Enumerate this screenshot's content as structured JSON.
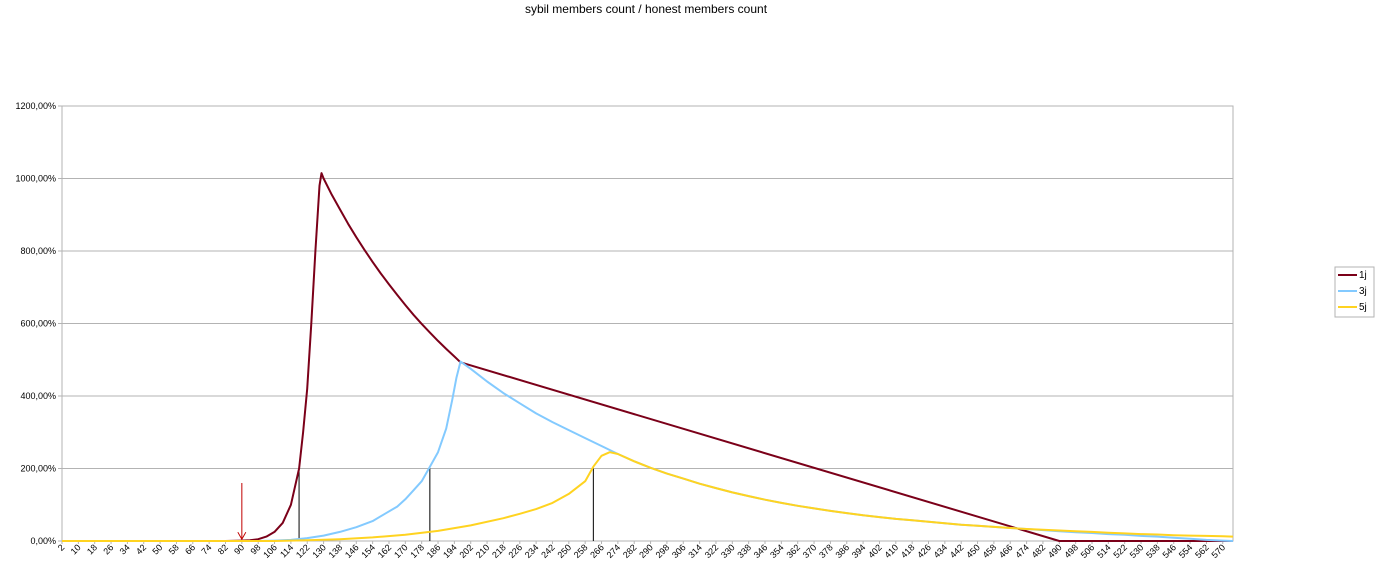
{
  "chart_data": {
    "type": "line",
    "title": "sybil members count / honest members count",
    "xlabel": "",
    "ylabel": "",
    "x_range": [
      2,
      575
    ],
    "x_tick_start": 2,
    "x_tick_step": 8,
    "x_tick_labels": [
      "2",
      "10",
      "18",
      "26",
      "34",
      "42",
      "50",
      "58",
      "66",
      "74",
      "82",
      "90",
      "98",
      "106",
      "114",
      "122",
      "130",
      "138",
      "146",
      "154",
      "162",
      "170",
      "178",
      "186",
      "194",
      "202",
      "210",
      "218",
      "226",
      "234",
      "242",
      "250",
      "258",
      "266",
      "274",
      "282",
      "290",
      "298",
      "306",
      "314",
      "322",
      "330",
      "338",
      "346",
      "354",
      "362",
      "370",
      "378",
      "386",
      "394",
      "402",
      "410",
      "418",
      "426",
      "434",
      "442",
      "450",
      "458",
      "466",
      "474",
      "482",
      "490",
      "498",
      "506",
      "514",
      "522",
      "530",
      "538",
      "546",
      "554",
      "562",
      "570"
    ],
    "ylim": [
      0,
      12
    ],
    "y_tick_labels": [
      "0,00%",
      "200,00%",
      "400,00%",
      "600,00%",
      "800,00%",
      "1000,00%",
      "1200,00%"
    ],
    "grid": "horizontal",
    "legend_position": "right",
    "series": [
      {
        "name": "1j",
        "color": "#7b0019",
        "points": [
          [
            2,
            0
          ],
          [
            82,
            0
          ],
          [
            90,
            0.01
          ],
          [
            94,
            0.02
          ],
          [
            98,
            0.05
          ],
          [
            102,
            0.12
          ],
          [
            106,
            0.25
          ],
          [
            110,
            0.5
          ],
          [
            114,
            1.0
          ],
          [
            118,
            2.0
          ],
          [
            120,
            3.0
          ],
          [
            122,
            4.2
          ],
          [
            124,
            6.0
          ],
          [
            126,
            8.0
          ],
          [
            128,
            9.8
          ],
          [
            129,
            10.15
          ],
          [
            130,
            10.0
          ],
          [
            134,
            9.55
          ],
          [
            138,
            9.15
          ],
          [
            142,
            8.75
          ],
          [
            146,
            8.38
          ],
          [
            150,
            8.03
          ],
          [
            154,
            7.7
          ],
          [
            158,
            7.38
          ],
          [
            162,
            7.08
          ],
          [
            166,
            6.79
          ],
          [
            170,
            6.51
          ],
          [
            174,
            6.24
          ],
          [
            178,
            5.99
          ],
          [
            182,
            5.75
          ],
          [
            186,
            5.52
          ],
          [
            190,
            5.3
          ],
          [
            194,
            5.09
          ],
          [
            197,
            4.93
          ],
          [
            490,
            0
          ],
          [
            575,
            0
          ]
        ]
      },
      {
        "name": "3j",
        "color": "#83caff",
        "points": [
          [
            2,
            0
          ],
          [
            98,
            0
          ],
          [
            106,
            0.01
          ],
          [
            114,
            0.03
          ],
          [
            122,
            0.08
          ],
          [
            130,
            0.15
          ],
          [
            138,
            0.25
          ],
          [
            146,
            0.38
          ],
          [
            154,
            0.55
          ],
          [
            160,
            0.75
          ],
          [
            166,
            0.95
          ],
          [
            170,
            1.15
          ],
          [
            174,
            1.4
          ],
          [
            178,
            1.65
          ],
          [
            182,
            2.05
          ],
          [
            186,
            2.45
          ],
          [
            190,
            3.1
          ],
          [
            193,
            3.9
          ],
          [
            195,
            4.5
          ],
          [
            197,
            4.95
          ],
          [
            202,
            4.75
          ],
          [
            210,
            4.4
          ],
          [
            218,
            4.08
          ],
          [
            226,
            3.8
          ],
          [
            234,
            3.52
          ],
          [
            242,
            3.28
          ],
          [
            250,
            3.06
          ],
          [
            258,
            2.84
          ],
          [
            266,
            2.62
          ],
          [
            274,
            2.4
          ],
          [
            282,
            2.2
          ],
          [
            290,
            2.02
          ],
          [
            298,
            1.86
          ],
          [
            306,
            1.72
          ],
          [
            314,
            1.58
          ],
          [
            322,
            1.46
          ],
          [
            330,
            1.34
          ],
          [
            338,
            1.24
          ],
          [
            346,
            1.14
          ],
          [
            354,
            1.05
          ],
          [
            362,
            0.97
          ],
          [
            370,
            0.9
          ],
          [
            378,
            0.83
          ],
          [
            386,
            0.77
          ],
          [
            394,
            0.71
          ],
          [
            402,
            0.66
          ],
          [
            410,
            0.61
          ],
          [
            418,
            0.57
          ],
          [
            426,
            0.53
          ],
          [
            434,
            0.49
          ],
          [
            442,
            0.45
          ],
          [
            450,
            0.42
          ],
          [
            458,
            0.39
          ],
          [
            466,
            0.36
          ],
          [
            474,
            0.33
          ],
          [
            482,
            0.3
          ],
          [
            490,
            0.27
          ],
          [
            498,
            0.24
          ],
          [
            506,
            0.22
          ],
          [
            514,
            0.19
          ],
          [
            522,
            0.17
          ],
          [
            530,
            0.14
          ],
          [
            538,
            0.12
          ],
          [
            546,
            0.09
          ],
          [
            554,
            0.06
          ],
          [
            562,
            0.03
          ],
          [
            570,
            0.01
          ],
          [
            575,
            0
          ]
        ]
      },
      {
        "name": "5j",
        "color": "#ffd320",
        "points": [
          [
            2,
            0
          ],
          [
            106,
            0
          ],
          [
            122,
            0.02
          ],
          [
            138,
            0.05
          ],
          [
            154,
            0.1
          ],
          [
            170,
            0.17
          ],
          [
            186,
            0.28
          ],
          [
            202,
            0.43
          ],
          [
            218,
            0.63
          ],
          [
            226,
            0.75
          ],
          [
            234,
            0.88
          ],
          [
            242,
            1.05
          ],
          [
            250,
            1.3
          ],
          [
            258,
            1.65
          ],
          [
            262,
            2.05
          ],
          [
            266,
            2.35
          ],
          [
            270,
            2.45
          ],
          [
            274,
            2.4
          ],
          [
            282,
            2.2
          ],
          [
            290,
            2.02
          ],
          [
            298,
            1.86
          ],
          [
            306,
            1.72
          ],
          [
            314,
            1.58
          ],
          [
            322,
            1.46
          ],
          [
            330,
            1.34
          ],
          [
            338,
            1.24
          ],
          [
            346,
            1.14
          ],
          [
            354,
            1.05
          ],
          [
            362,
            0.97
          ],
          [
            370,
            0.9
          ],
          [
            378,
            0.83
          ],
          [
            386,
            0.77
          ],
          [
            394,
            0.71
          ],
          [
            402,
            0.66
          ],
          [
            410,
            0.61
          ],
          [
            418,
            0.57
          ],
          [
            426,
            0.53
          ],
          [
            434,
            0.49
          ],
          [
            442,
            0.45
          ],
          [
            450,
            0.42
          ],
          [
            458,
            0.39
          ],
          [
            466,
            0.36
          ],
          [
            474,
            0.33
          ],
          [
            482,
            0.31
          ],
          [
            490,
            0.29
          ],
          [
            498,
            0.27
          ],
          [
            506,
            0.25
          ],
          [
            514,
            0.23
          ],
          [
            522,
            0.21
          ],
          [
            530,
            0.19
          ],
          [
            538,
            0.18
          ],
          [
            546,
            0.16
          ],
          [
            554,
            0.15
          ],
          [
            562,
            0.14
          ],
          [
            570,
            0.13
          ],
          [
            575,
            0.12
          ]
        ]
      }
    ],
    "markers": [
      {
        "type": "vline",
        "x": 118,
        "y": 2.0,
        "color": "#000000"
      },
      {
        "type": "vline",
        "x": 182,
        "y": 2.0,
        "color": "#000000"
      },
      {
        "type": "vline",
        "x": 262,
        "y": 2.0,
        "color": "#000000"
      },
      {
        "type": "arrow",
        "x": 90,
        "y_from": 1.6,
        "y_to": 0.05,
        "color": "#c00000"
      }
    ]
  }
}
